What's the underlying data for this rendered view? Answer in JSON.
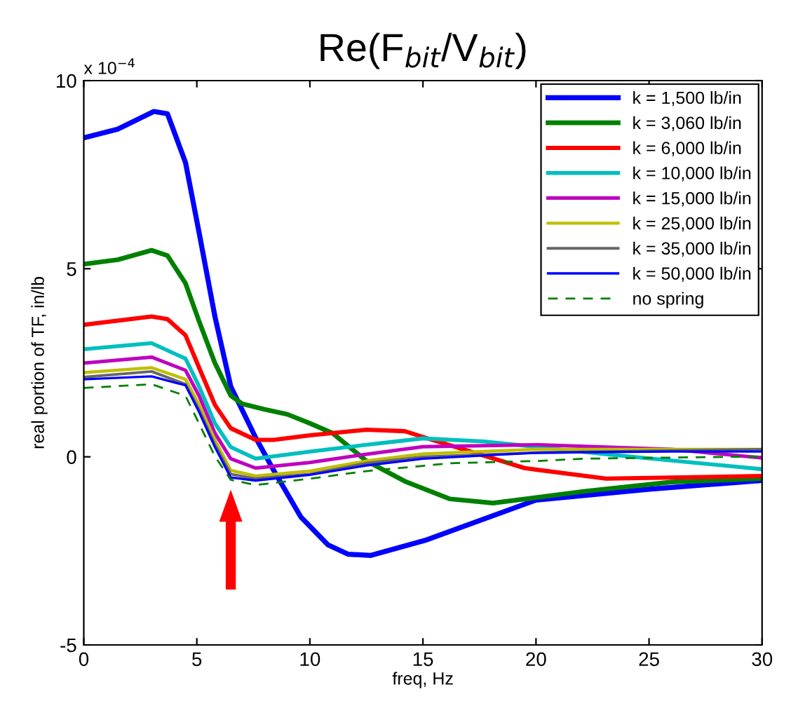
{
  "chart_data": {
    "type": "line",
    "title": "Re(F$_{bit}$/V$_{bit}$)",
    "xlabel": "freq, Hz",
    "ylabel": "real portion of TF, in/lb",
    "annotations": [
      "x 10$^{−4}$"
    ],
    "xlim": [
      0,
      30
    ],
    "ylim": [
      -5,
      10
    ],
    "xticks": [
      0,
      5,
      10,
      15,
      20,
      25,
      30
    ],
    "yticks": [
      -5,
      0,
      5,
      10
    ],
    "grid": false,
    "legend": "top right",
    "marker": "none",
    "line_style": "solid",
    "series": [
      {
        "name": "k = 1,500 lb/in",
        "color": "#0000ff",
        "x": [
          0,
          1.5,
          3.1,
          3.7,
          4.5,
          5.1,
          5.8,
          6.5,
          7.6,
          8.4,
          9.6,
          10.8,
          11.7,
          12.7,
          15.1,
          20,
          25,
          30
        ],
        "values": [
          8.48,
          8.71,
          9.18,
          9.12,
          7.82,
          5.96,
          3.73,
          1.87,
          0.51,
          -0.36,
          -1.6,
          -2.34,
          -2.59,
          -2.62,
          -2.22,
          -1.15,
          -0.86,
          -0.63
        ]
      },
      {
        "name": "k = 3,060 lb/in",
        "color": "#008000",
        "x": [
          0,
          1.5,
          3,
          3.7,
          4.5,
          5.1,
          5.8,
          6.5,
          7,
          8,
          9,
          10,
          11,
          12.5,
          14.2,
          16.2,
          18.1,
          22.1,
          26,
          30
        ],
        "values": [
          5.12,
          5.24,
          5.49,
          5.35,
          4.61,
          3.6,
          2.49,
          1.63,
          1.41,
          1.26,
          1.13,
          0.89,
          0.63,
          -0.11,
          -0.65,
          -1.12,
          -1.23,
          -0.92,
          -0.67,
          -0.58
        ]
      },
      {
        "name": "k = 6,000 lb/in",
        "color": "#ff0000",
        "x": [
          0,
          3,
          3.7,
          4.5,
          5.1,
          5.8,
          6.5,
          7.6,
          8.4,
          10,
          12.5,
          14.2,
          15.1,
          19.5,
          23.1,
          30
        ],
        "values": [
          3.51,
          3.73,
          3.66,
          3.23,
          2.37,
          1.38,
          0.76,
          0.45,
          0.45,
          0.57,
          0.72,
          0.68,
          0.51,
          -0.3,
          -0.58,
          -0.51
        ]
      },
      {
        "name": "k = 10,000 lb/in",
        "color": "#00bfbf",
        "x": [
          0,
          3,
          4.5,
          5.1,
          5.8,
          6.5,
          7.6,
          10,
          12.5,
          15,
          17.7,
          23.1,
          30
        ],
        "values": [
          2.86,
          3.02,
          2.61,
          1.87,
          0.89,
          0.26,
          -0.05,
          0.14,
          0.32,
          0.49,
          0.41,
          0.07,
          -0.33
        ]
      },
      {
        "name": "k = 15,000 lb/in",
        "color": "#bf00bf",
        "x": [
          0,
          3,
          4.5,
          5.1,
          5.8,
          6.5,
          7.6,
          10,
          12.5,
          15,
          20.1,
          26,
          30
        ],
        "values": [
          2.49,
          2.65,
          2.3,
          1.62,
          0.63,
          -0.05,
          -0.3,
          -0.15,
          0.07,
          0.27,
          0.32,
          0.2,
          -0.03
        ]
      },
      {
        "name": "k = 25,000 lb/in",
        "color": "#bfbf00",
        "x": [
          0,
          3,
          4.5,
          5.1,
          5.8,
          6.5,
          7.6,
          10,
          12.5,
          15,
          20.1,
          30
        ],
        "values": [
          2.24,
          2.37,
          2.06,
          1.38,
          0.45,
          -0.36,
          -0.51,
          -0.38,
          -0.11,
          0.08,
          0.2,
          0.2
        ]
      },
      {
        "name": "k = 35,000 lb/in",
        "color": "#666666",
        "x": [
          0,
          3,
          4.5,
          5.1,
          5.8,
          6.5,
          7.6,
          10,
          12.5,
          15,
          20.1,
          30
        ],
        "values": [
          2.12,
          2.27,
          1.93,
          1.25,
          0.32,
          -0.46,
          -0.58,
          -0.46,
          -0.17,
          0,
          0.11,
          0.2
        ]
      },
      {
        "name": "k = 50,000 lb/in",
        "color": "#0000ff",
        "x": [
          0,
          3,
          4.5,
          5.1,
          5.8,
          6.5,
          7.6,
          10,
          12.5,
          15,
          20.1,
          26,
          30
        ],
        "values": [
          2.06,
          2.14,
          1.9,
          1.19,
          0.26,
          -0.55,
          -0.63,
          -0.48,
          -0.23,
          -0.05,
          0.11,
          0.14,
          0.14
        ]
      },
      {
        "name": "no spring",
        "color": "#008000",
        "line_style": "dashed",
        "x": [
          0,
          3,
          4.5,
          5.1,
          5.8,
          6.5,
          7.6,
          10,
          12.5,
          15,
          16.2,
          20.1,
          22.1,
          30
        ],
        "values": [
          1.83,
          1.93,
          1.62,
          0.88,
          0.01,
          -0.61,
          -0.75,
          -0.58,
          -0.38,
          -0.24,
          -0.17,
          -0.11,
          -0.05,
          0.01
        ]
      }
    ]
  }
}
